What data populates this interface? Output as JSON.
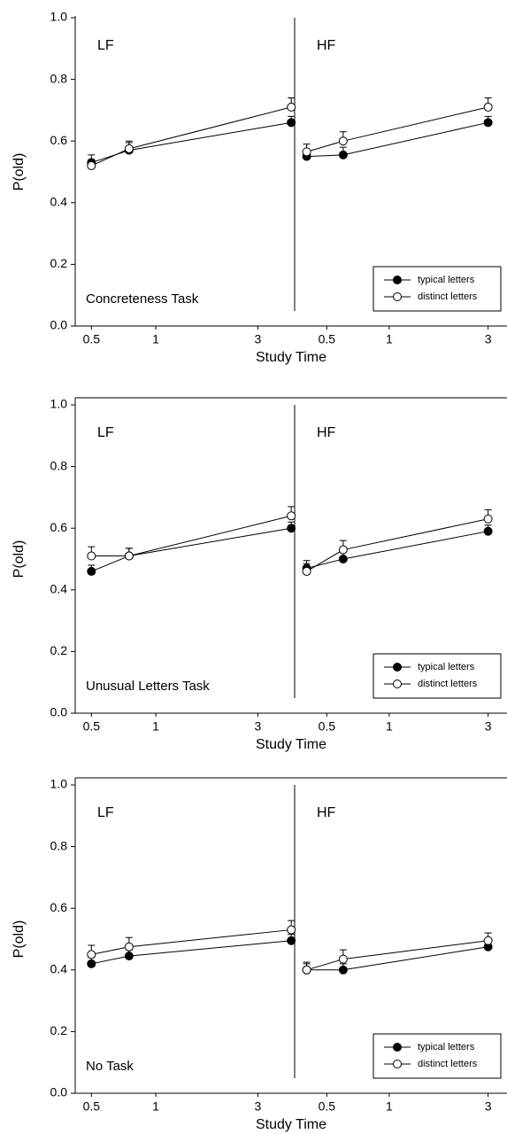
{
  "chart_data": [
    {
      "type": "line",
      "annotation": "Concreteness Task",
      "y_label": "P(old)",
      "x_label": "Study Time",
      "xscale": "log",
      "ylim": [
        0,
        1
      ],
      "yticks": [
        {
          "value": 0,
          "label": "0.0"
        },
        0.2,
        0.4,
        0.6,
        0.8,
        {
          "value": 1,
          "label": "1.0"
        }
      ],
      "legend": "lower right",
      "legend_entries": [
        "typical letters",
        "distinct letters"
      ],
      "marker_fills": [
        "#000000",
        "#ffffff"
      ],
      "panels": [
        {
          "label": "LF",
          "xlim": [
            0.42,
            4.46
          ],
          "xticks": [
            0.5,
            1,
            3
          ],
          "x": [
            0.5,
            0.75,
            4.3
          ],
          "series": [
            {
              "values": [
                0.53,
                0.57,
                0.66
              ],
              "errors": [
                0.025,
                0.025,
                0.02
              ]
            },
            {
              "values": [
                0.52,
                0.575,
                0.71
              ],
              "errors": [
                0.02,
                0.025,
                0.03
              ]
            }
          ]
        },
        {
          "label": "HF",
          "xlim": [
            0.35,
            3.7
          ],
          "xticks": [
            0.5,
            1,
            3
          ],
          "x": [
            0.4,
            0.6,
            3
          ],
          "series": [
            {
              "values": [
                0.55,
                0.555,
                0.66
              ],
              "errors": [
                0.02,
                0.025,
                0.02
              ]
            },
            {
              "values": [
                0.565,
                0.6,
                0.71
              ],
              "errors": [
                0.025,
                0.03,
                0.03
              ]
            }
          ]
        }
      ]
    },
    {
      "type": "line",
      "annotation": "Unusual Letters Task",
      "y_label": "P(old)",
      "x_label": "Study Time",
      "xscale": "log",
      "ylim": [
        0,
        1
      ],
      "yticks": [
        {
          "value": 0,
          "label": "0.0"
        },
        0.2,
        0.4,
        0.6,
        0.8,
        {
          "value": 1,
          "label": "1.0"
        }
      ],
      "legend": "lower right",
      "legend_entries": [
        "typical letters",
        "distinct letters"
      ],
      "marker_fills": [
        "#000000",
        "#ffffff"
      ],
      "panels": [
        {
          "label": "LF",
          "xlim": [
            0.42,
            4.46
          ],
          "xticks": [
            0.5,
            1,
            3
          ],
          "x": [
            0.5,
            0.75,
            4.3
          ],
          "series": [
            {
              "values": [
                0.46,
                0.51,
                0.6
              ],
              "errors": [
                0.02,
                0.025,
                0.02
              ]
            },
            {
              "values": [
                0.51,
                0.51,
                0.64
              ],
              "errors": [
                0.03,
                0.025,
                0.03
              ]
            }
          ]
        },
        {
          "label": "HF",
          "xlim": [
            0.35,
            3.7
          ],
          "xticks": [
            0.5,
            1,
            3
          ],
          "x": [
            0.4,
            0.6,
            3
          ],
          "series": [
            {
              "values": [
                0.47,
                0.5,
                0.59
              ],
              "errors": [
                0.025,
                0.025,
                0.02
              ]
            },
            {
              "values": [
                0.46,
                0.53,
                0.63
              ],
              "errors": [
                0.025,
                0.03,
                0.03
              ]
            }
          ]
        }
      ]
    },
    {
      "type": "line",
      "annotation": "No Task",
      "y_label": "P(old)",
      "x_label": "Study Time",
      "xscale": "log",
      "ylim": [
        0,
        1
      ],
      "yticks": [
        {
          "value": 0,
          "label": "0.0"
        },
        0.2,
        0.4,
        0.6,
        0.8,
        {
          "value": 1,
          "label": "1.0"
        }
      ],
      "legend": "lower right",
      "legend_entries": [
        "typical letters",
        "distinct letters"
      ],
      "marker_fills": [
        "#000000",
        "#ffffff"
      ],
      "panels": [
        {
          "label": "LF",
          "xlim": [
            0.42,
            4.46
          ],
          "xticks": [
            0.5,
            1,
            3
          ],
          "x": [
            0.5,
            0.75,
            4.3
          ],
          "series": [
            {
              "values": [
                0.42,
                0.445,
                0.495
              ],
              "errors": [
                0.02,
                0.02,
                0.02
              ]
            },
            {
              "values": [
                0.45,
                0.475,
                0.53
              ],
              "errors": [
                0.03,
                0.03,
                0.03
              ]
            }
          ]
        },
        {
          "label": "HF",
          "xlim": [
            0.35,
            3.7
          ],
          "xticks": [
            0.5,
            1,
            3
          ],
          "x": [
            0.4,
            0.6,
            3
          ],
          "series": [
            {
              "values": [
                0.4,
                0.4,
                0.475
              ],
              "errors": [
                0.025,
                0.02,
                0.02
              ]
            },
            {
              "values": [
                0.4,
                0.435,
                0.495
              ],
              "errors": [
                0.02,
                0.03,
                0.025
              ]
            }
          ]
        }
      ]
    }
  ]
}
